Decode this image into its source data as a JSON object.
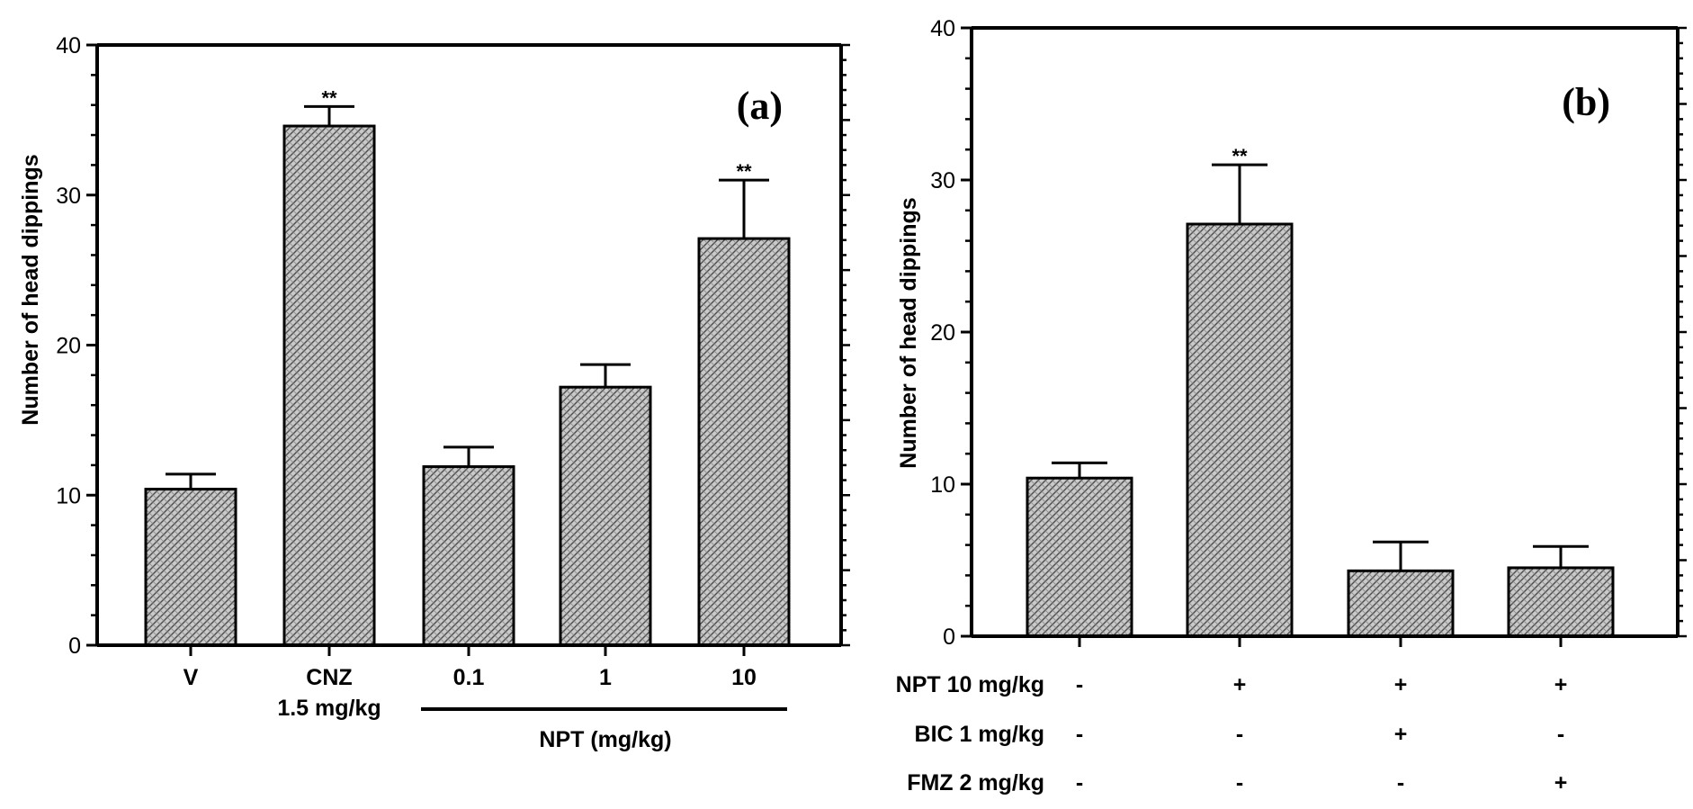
{
  "chart_data": [
    {
      "type": "bar",
      "panel_label": "(a)",
      "ylabel": "Number of head dippings",
      "ylim": [
        0,
        40
      ],
      "yticks": [
        "0",
        "10",
        "20",
        "30",
        "40"
      ],
      "categories": [
        {
          "label": "V",
          "sublabel": ""
        },
        {
          "label": "CNZ",
          "sublabel": "1.5 mg/kg"
        },
        {
          "label": "0.1",
          "sublabel": ""
        },
        {
          "label": "1",
          "sublabel": ""
        },
        {
          "label": "10",
          "sublabel": ""
        }
      ],
      "values": [
        10.4,
        34.6,
        11.9,
        17.2,
        27.1
      ],
      "errors": [
        1.0,
        1.3,
        1.3,
        1.5,
        3.9
      ],
      "significance": [
        "",
        "**",
        "",
        "",
        "**"
      ],
      "group_label": "NPT (mg/kg)"
    },
    {
      "type": "bar",
      "panel_label": "(b)",
      "ylabel": "Number of head dippings",
      "ylim": [
        0,
        40
      ],
      "yticks": [
        "0",
        "10",
        "20",
        "30",
        "40"
      ],
      "values": [
        10.4,
        27.1,
        4.3,
        4.5
      ],
      "errors": [
        1.0,
        3.9,
        1.9,
        1.4
      ],
      "significance": [
        "",
        "**",
        "",
        ""
      ],
      "treatment_rows": [
        {
          "label": "NPT 10 mg/kg",
          "signs": [
            "-",
            "+",
            "+",
            "+"
          ]
        },
        {
          "label": "BIC 1 mg/kg",
          "signs": [
            "-",
            "-",
            "+",
            "-"
          ]
        },
        {
          "label": "FMZ 2 mg/kg",
          "signs": [
            "-",
            "-",
            "-",
            "+"
          ]
        }
      ]
    }
  ]
}
